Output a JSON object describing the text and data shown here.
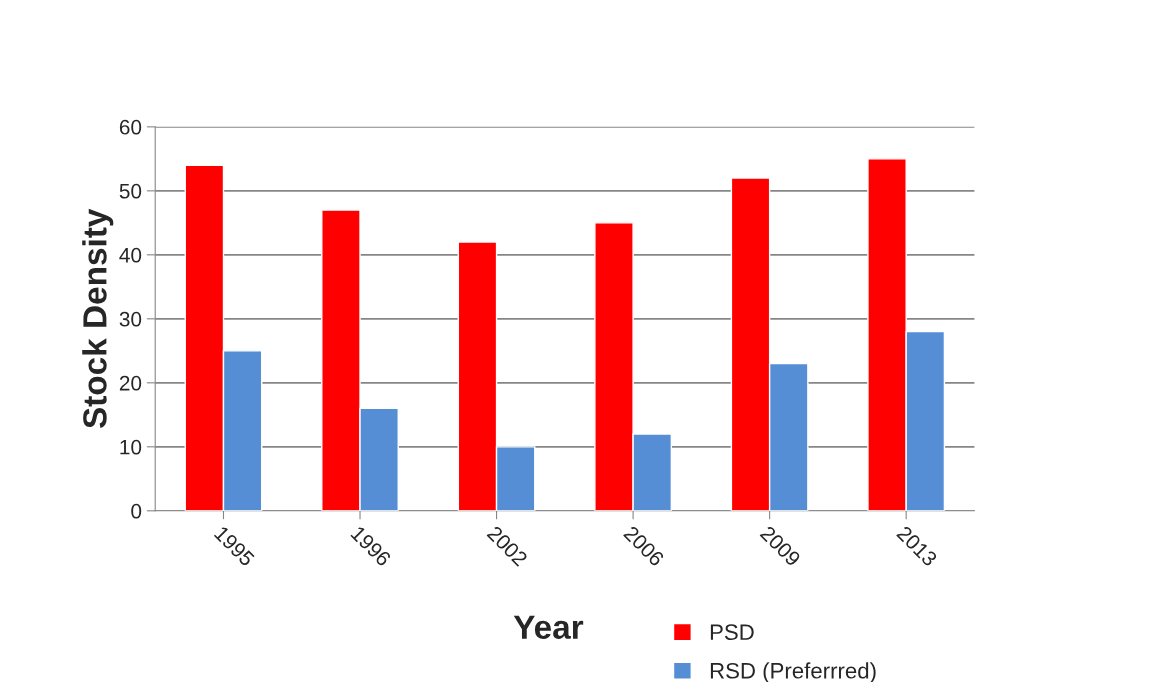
{
  "chart_data": {
    "type": "bar",
    "xlabel": "Year",
    "ylabel": "Stock Density",
    "categories": [
      "1995",
      "1996",
      "2002",
      "2006",
      "2009",
      "2013"
    ],
    "series": [
      {
        "name": "PSD",
        "color": "#ff0000",
        "values": [
          54,
          47,
          42,
          45,
          52,
          55
        ]
      },
      {
        "name": "RSD (Preferrred)",
        "color": "#558ed5",
        "values": [
          25,
          16,
          10,
          12,
          23,
          28
        ]
      }
    ],
    "ylim": [
      0,
      60
    ],
    "yticks": [
      0,
      10,
      20,
      30,
      40,
      50,
      60
    ],
    "grid": "y",
    "legend": "bottom"
  }
}
